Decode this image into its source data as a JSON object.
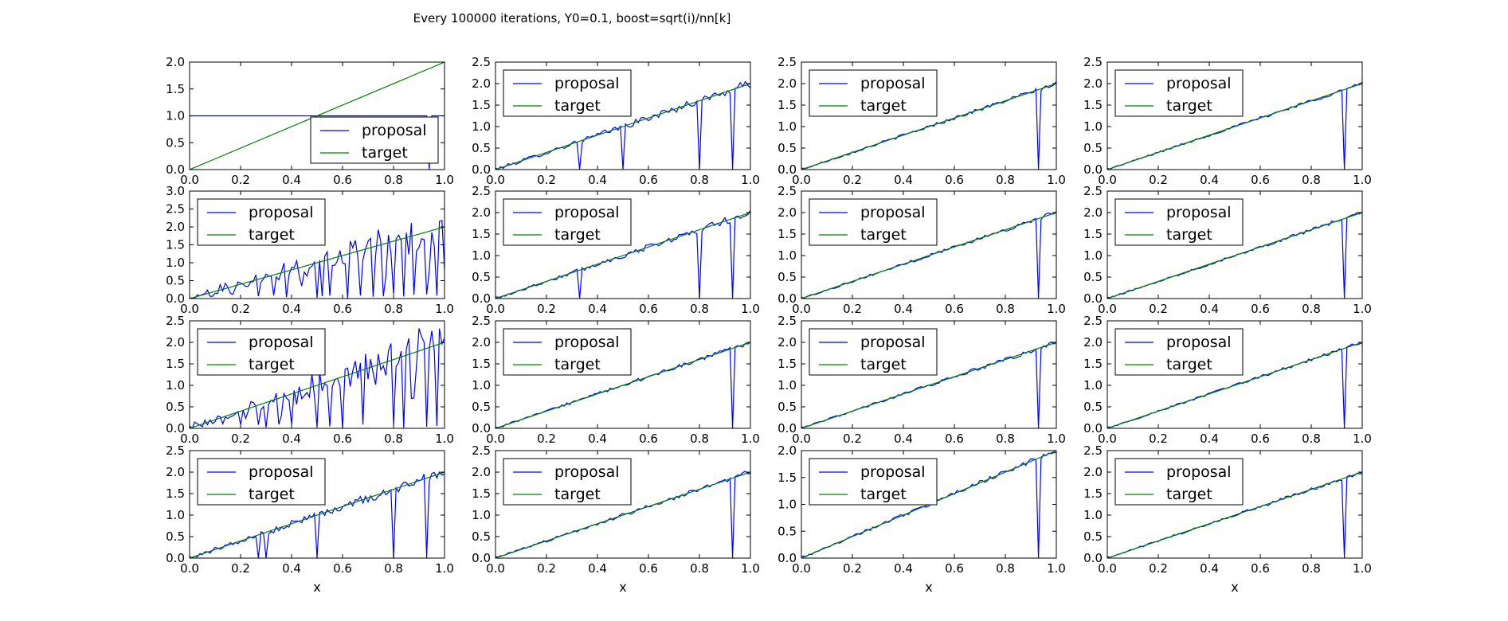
{
  "figure": {
    "title": "Every 100000 iterations, Y0=0.1, boost=sqrt(i)/nn[k]",
    "xlabel": "x"
  },
  "colors": {
    "proposal": "#0000ff",
    "target": "#008000"
  },
  "chart_data": [
    {
      "type": "line",
      "row": 0,
      "col": 0,
      "xlim": [
        0,
        1
      ],
      "ylim": [
        0,
        2.0
      ],
      "yticks": [
        0,
        0.5,
        1.0,
        1.5,
        2.0
      ],
      "xticks": [
        0,
        0.2,
        0.4,
        0.6,
        0.8,
        1.0
      ],
      "legend": "lower-right",
      "series": [
        {
          "name": "proposal",
          "kind": "flat",
          "value": 1.0,
          "dips": [
            0.94
          ]
        },
        {
          "name": "target",
          "kind": "linear",
          "slope": 2
        }
      ]
    },
    {
      "type": "line",
      "row": 0,
      "col": 1,
      "xlim": [
        0,
        1
      ],
      "ylim": [
        0,
        2.5
      ],
      "yticks": [
        0,
        0.5,
        1.0,
        1.5,
        2.0,
        2.5
      ],
      "xticks": [
        0,
        0.2,
        0.4,
        0.6,
        0.8,
        1.0
      ],
      "legend": "upper-left",
      "series": [
        {
          "name": "proposal",
          "kind": "noisy",
          "noise": 0.07,
          "dips": [
            0.33,
            0.5,
            0.8,
            0.93
          ]
        },
        {
          "name": "target",
          "kind": "linear",
          "slope": 2
        }
      ]
    },
    {
      "type": "line",
      "row": 0,
      "col": 2,
      "xlim": [
        0,
        1
      ],
      "ylim": [
        0,
        2.5
      ],
      "yticks": [
        0,
        0.5,
        1.0,
        1.5,
        2.0,
        2.5
      ],
      "xticks": [
        0,
        0.2,
        0.4,
        0.6,
        0.8,
        1.0
      ],
      "legend": "upper-left",
      "series": [
        {
          "name": "proposal",
          "kind": "noisy",
          "noise": 0.035,
          "dips": [
            0.93
          ]
        },
        {
          "name": "target",
          "kind": "linear",
          "slope": 2
        }
      ]
    },
    {
      "type": "line",
      "row": 0,
      "col": 3,
      "xlim": [
        0,
        1
      ],
      "ylim": [
        0,
        2.5
      ],
      "yticks": [
        0,
        0.5,
        1.0,
        1.5,
        2.0,
        2.5
      ],
      "xticks": [
        0,
        0.2,
        0.4,
        0.6,
        0.8,
        1.0
      ],
      "legend": "upper-left",
      "series": [
        {
          "name": "proposal",
          "kind": "noisy",
          "noise": 0.03,
          "dips": [
            0.93
          ]
        },
        {
          "name": "target",
          "kind": "linear",
          "slope": 2
        }
      ]
    },
    {
      "type": "line",
      "row": 1,
      "col": 0,
      "xlim": [
        0,
        1
      ],
      "ylim": [
        0,
        3.0
      ],
      "yticks": [
        0,
        0.5,
        1.0,
        1.5,
        2.0,
        2.5,
        3.0
      ],
      "xticks": [
        0,
        0.2,
        0.4,
        0.6,
        0.8,
        1.0
      ],
      "legend": "upper-left",
      "series": [
        {
          "name": "proposal",
          "kind": "erratic",
          "noise": 0.25,
          "dipProb": 0.35,
          "dips": [
            0.17,
            0.27,
            0.33,
            0.38,
            0.5,
            0.52,
            0.55,
            0.62,
            0.67,
            0.72,
            0.76,
            0.8,
            0.84,
            0.88,
            0.93,
            0.97
          ]
        },
        {
          "name": "target",
          "kind": "linear",
          "slope": 2
        }
      ]
    },
    {
      "type": "line",
      "row": 1,
      "col": 1,
      "xlim": [
        0,
        1
      ],
      "ylim": [
        0,
        2.5
      ],
      "yticks": [
        0,
        0.5,
        1.0,
        1.5,
        2.0,
        2.5
      ],
      "xticks": [
        0,
        0.2,
        0.4,
        0.6,
        0.8,
        1.0
      ],
      "legend": "upper-left",
      "series": [
        {
          "name": "proposal",
          "kind": "noisy",
          "noise": 0.06,
          "dips": [
            0.33,
            0.8,
            0.93
          ]
        },
        {
          "name": "target",
          "kind": "linear",
          "slope": 2
        }
      ]
    },
    {
      "type": "line",
      "row": 1,
      "col": 2,
      "xlim": [
        0,
        1
      ],
      "ylim": [
        0,
        2.5
      ],
      "yticks": [
        0,
        0.5,
        1.0,
        1.5,
        2.0,
        2.5
      ],
      "xticks": [
        0,
        0.2,
        0.4,
        0.6,
        0.8,
        1.0
      ],
      "legend": "upper-left",
      "series": [
        {
          "name": "proposal",
          "kind": "noisy",
          "noise": 0.035,
          "dips": [
            0.93
          ]
        },
        {
          "name": "target",
          "kind": "linear",
          "slope": 2
        }
      ]
    },
    {
      "type": "line",
      "row": 1,
      "col": 3,
      "xlim": [
        0,
        1
      ],
      "ylim": [
        0,
        2.5
      ],
      "yticks": [
        0,
        0.5,
        1.0,
        1.5,
        2.0,
        2.5
      ],
      "xticks": [
        0,
        0.2,
        0.4,
        0.6,
        0.8,
        1.0
      ],
      "legend": "upper-left",
      "series": [
        {
          "name": "proposal",
          "kind": "noisy",
          "noise": 0.03,
          "dips": [
            0.93
          ]
        },
        {
          "name": "target",
          "kind": "linear",
          "slope": 2
        }
      ]
    },
    {
      "type": "line",
      "row": 2,
      "col": 0,
      "xlim": [
        0,
        1
      ],
      "ylim": [
        0,
        2.5
      ],
      "yticks": [
        0,
        0.5,
        1.0,
        1.5,
        2.0,
        2.5
      ],
      "xticks": [
        0,
        0.2,
        0.4,
        0.6,
        0.8,
        1.0
      ],
      "legend": "upper-left",
      "series": [
        {
          "name": "proposal",
          "kind": "erratic",
          "noise": 0.2,
          "dipProb": 0.25,
          "dips": [
            0.2,
            0.27,
            0.3,
            0.35,
            0.4,
            0.5,
            0.55,
            0.6,
            0.68,
            0.8,
            0.84,
            0.93,
            0.97
          ]
        },
        {
          "name": "target",
          "kind": "linear",
          "slope": 2
        }
      ]
    },
    {
      "type": "line",
      "row": 2,
      "col": 1,
      "xlim": [
        0,
        1
      ],
      "ylim": [
        0,
        2.5
      ],
      "yticks": [
        0,
        0.5,
        1.0,
        1.5,
        2.0,
        2.5
      ],
      "xticks": [
        0,
        0.2,
        0.4,
        0.6,
        0.8,
        1.0
      ],
      "legend": "upper-left",
      "series": [
        {
          "name": "proposal",
          "kind": "noisy",
          "noise": 0.04,
          "dips": [
            0.93
          ]
        },
        {
          "name": "target",
          "kind": "linear",
          "slope": 2
        }
      ]
    },
    {
      "type": "line",
      "row": 2,
      "col": 2,
      "xlim": [
        0,
        1
      ],
      "ylim": [
        0,
        2.5
      ],
      "yticks": [
        0,
        0.5,
        1.0,
        1.5,
        2.0,
        2.5
      ],
      "xticks": [
        0,
        0.2,
        0.4,
        0.6,
        0.8,
        1.0
      ],
      "legend": "upper-left",
      "series": [
        {
          "name": "proposal",
          "kind": "noisy",
          "noise": 0.035,
          "dips": [
            0.93
          ]
        },
        {
          "name": "target",
          "kind": "linear",
          "slope": 2
        }
      ]
    },
    {
      "type": "line",
      "row": 2,
      "col": 3,
      "xlim": [
        0,
        1
      ],
      "ylim": [
        0,
        2.5
      ],
      "yticks": [
        0,
        0.5,
        1.0,
        1.5,
        2.0,
        2.5
      ],
      "xticks": [
        0,
        0.2,
        0.4,
        0.6,
        0.8,
        1.0
      ],
      "legend": "upper-left",
      "series": [
        {
          "name": "proposal",
          "kind": "noisy",
          "noise": 0.03,
          "dips": [
            0.93
          ]
        },
        {
          "name": "target",
          "kind": "linear",
          "slope": 2
        }
      ]
    },
    {
      "type": "line",
      "row": 3,
      "col": 0,
      "xlim": [
        0,
        1
      ],
      "ylim": [
        0,
        2.5
      ],
      "yticks": [
        0,
        0.5,
        1.0,
        1.5,
        2.0,
        2.5
      ],
      "xticks": [
        0,
        0.2,
        0.4,
        0.6,
        0.8,
        1.0
      ],
      "legend": "upper-left",
      "series": [
        {
          "name": "proposal",
          "kind": "noisy",
          "noise": 0.09,
          "dips": [
            0.27,
            0.3,
            0.5,
            0.8,
            0.93
          ]
        },
        {
          "name": "target",
          "kind": "linear",
          "slope": 2
        }
      ]
    },
    {
      "type": "line",
      "row": 3,
      "col": 1,
      "xlim": [
        0,
        1
      ],
      "ylim": [
        0,
        2.5
      ],
      "yticks": [
        0,
        0.5,
        1.0,
        1.5,
        2.0,
        2.5
      ],
      "xticks": [
        0,
        0.2,
        0.4,
        0.6,
        0.8,
        1.0
      ],
      "legend": "upper-left",
      "series": [
        {
          "name": "proposal",
          "kind": "noisy",
          "noise": 0.04,
          "dips": [
            0.93
          ]
        },
        {
          "name": "target",
          "kind": "linear",
          "slope": 2
        }
      ]
    },
    {
      "type": "line",
      "row": 3,
      "col": 2,
      "xlim": [
        0,
        1
      ],
      "ylim": [
        0,
        2.0
      ],
      "yticks": [
        0,
        0.5,
        1.0,
        1.5,
        2.0
      ],
      "xticks": [
        0,
        0.2,
        0.4,
        0.6,
        0.8,
        1.0
      ],
      "legend": "upper-left",
      "series": [
        {
          "name": "proposal",
          "kind": "noisy",
          "noise": 0.035,
          "dips": [
            0.93
          ]
        },
        {
          "name": "target",
          "kind": "linear",
          "slope": 2
        }
      ]
    },
    {
      "type": "line",
      "row": 3,
      "col": 3,
      "xlim": [
        0,
        1
      ],
      "ylim": [
        0,
        2.5
      ],
      "yticks": [
        0,
        0.5,
        1.0,
        1.5,
        2.0,
        2.5
      ],
      "xticks": [
        0,
        0.2,
        0.4,
        0.6,
        0.8,
        1.0
      ],
      "legend": "upper-left",
      "series": [
        {
          "name": "proposal",
          "kind": "noisy",
          "noise": 0.03,
          "dips": [
            0.93
          ]
        },
        {
          "name": "target",
          "kind": "linear",
          "slope": 2
        }
      ]
    }
  ]
}
